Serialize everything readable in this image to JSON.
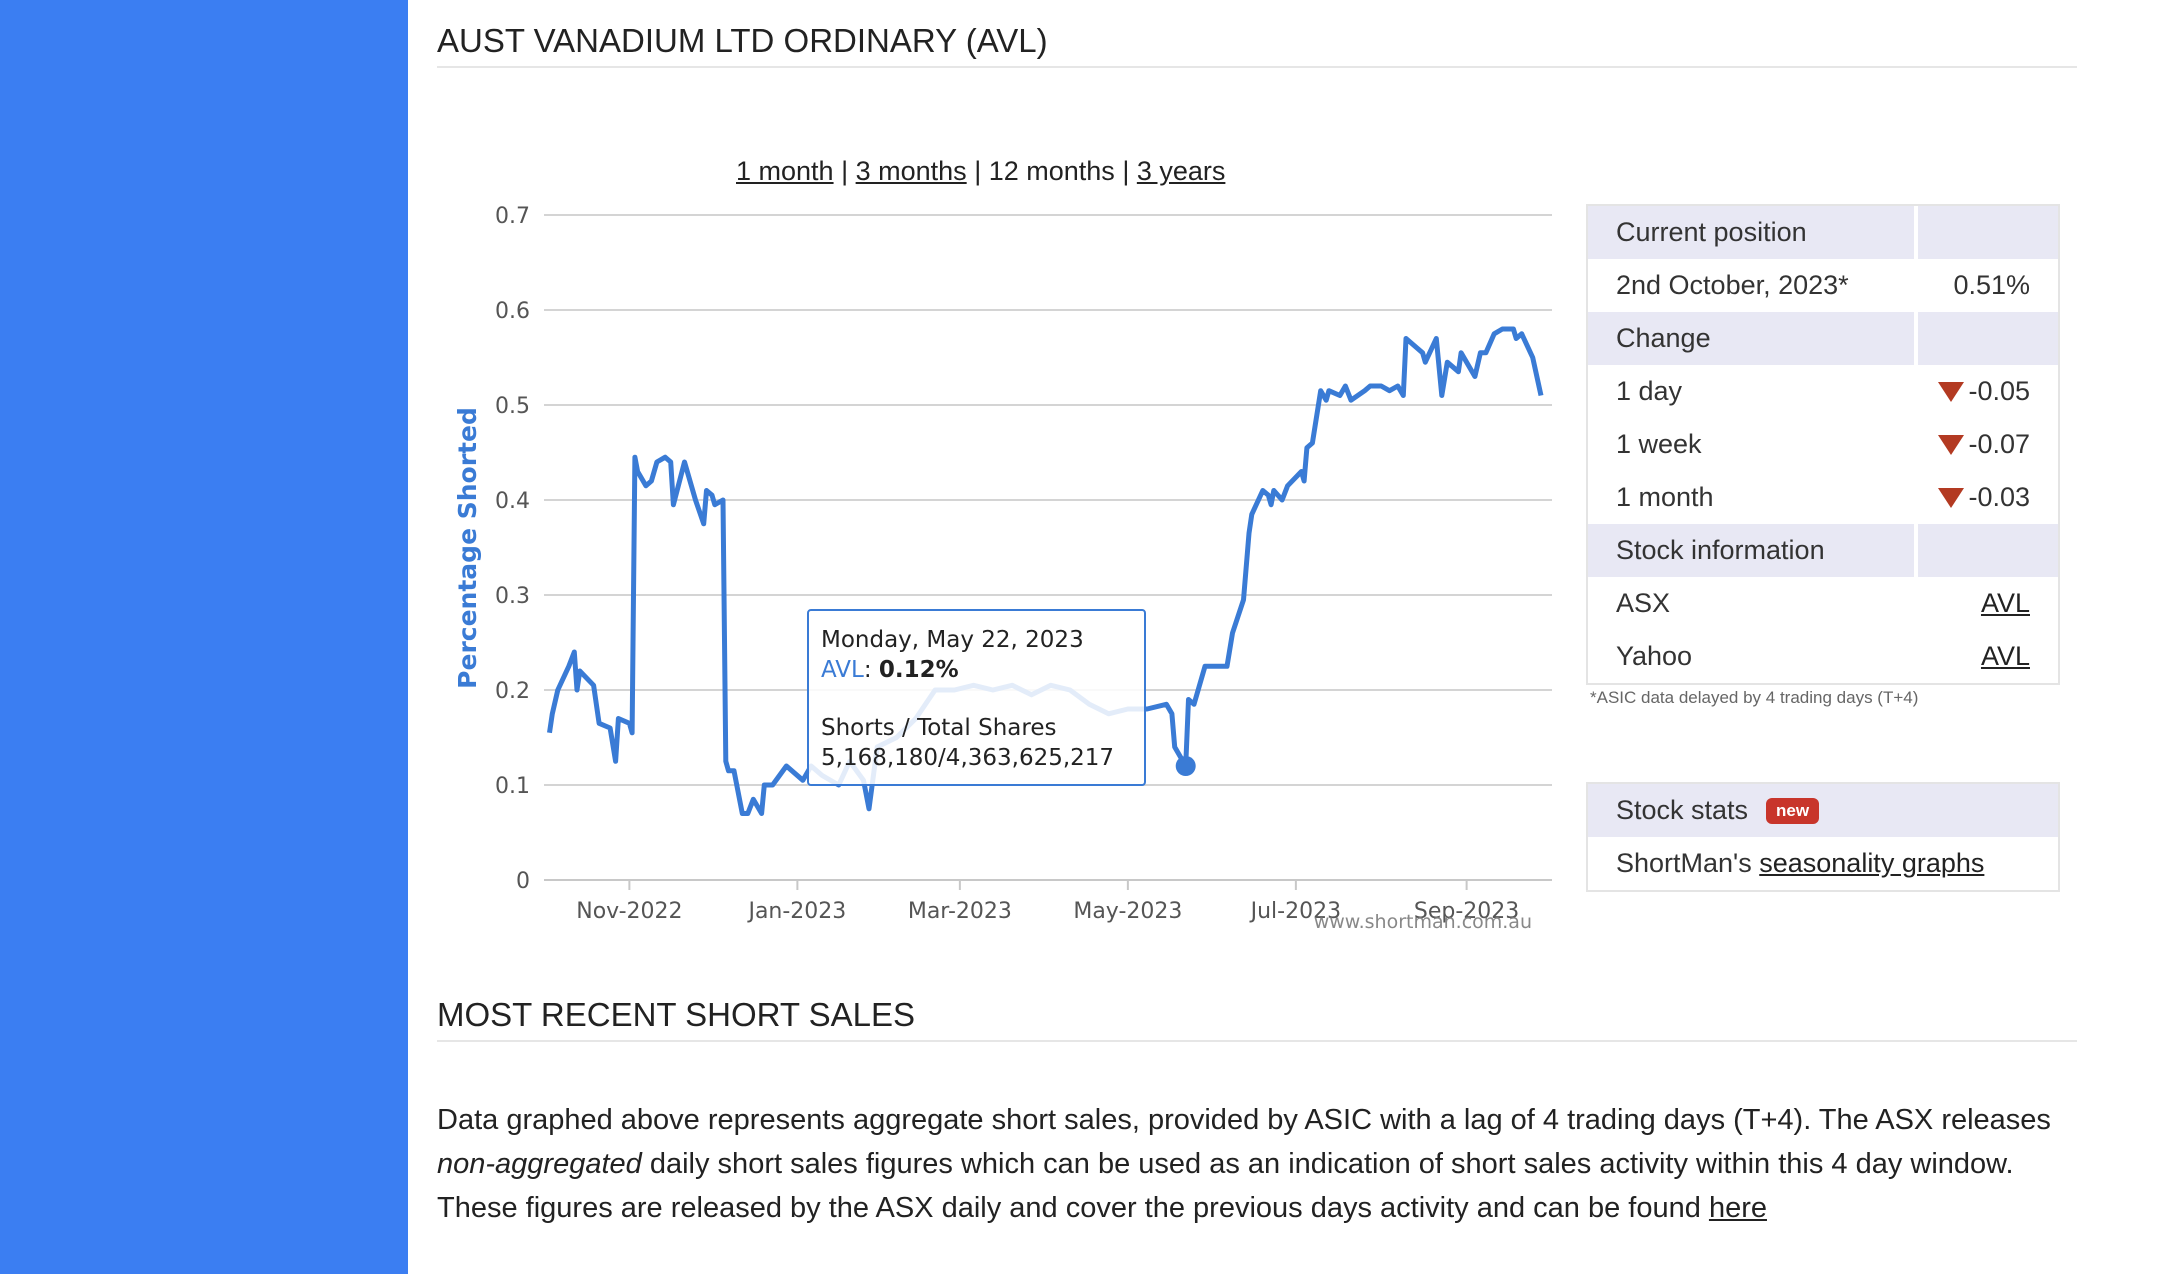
{
  "page": {
    "title": "AUST VANADIUM LTD ORDINARY (AVL)",
    "recent_heading": "MOST RECENT SHORT SALES"
  },
  "ranges": {
    "one_month": "1 month",
    "three_months": "3 months",
    "twelve_months": "12 months",
    "three_years": "3 years",
    "sep": "|"
  },
  "tooltip": {
    "date": "Monday, May 22, 2023",
    "ticker": "AVL",
    "value": "0.12%",
    "shares_label": "Shorts / Total Shares",
    "shares_value": "5,168,180/4,363,625,217"
  },
  "position_panel": {
    "current_header": "Current position",
    "date": "2nd October, 2023*",
    "date_value": "0.51%",
    "change_header": "Change",
    "day_label": "1 day",
    "day_value": "-0.05",
    "week_label": "1 week",
    "week_value": "-0.07",
    "month_label": "1 month",
    "month_value": "-0.03",
    "info_header": "Stock information",
    "asx_label": "ASX",
    "asx_link": "AVL",
    "yahoo_label": "Yahoo",
    "yahoo_link": "AVL",
    "note": "*ASIC data delayed by 4 trading days (T+4)"
  },
  "stats_panel": {
    "header": "Stock stats",
    "badge": "new",
    "prefix": "ShortMan's",
    "link": "seasonality graphs"
  },
  "description": {
    "part1": "Data graphed above represents aggregate short sales, provided by ASIC with a lag of 4 trading days (T+4). The ASX releases",
    "italic": "non-aggregated",
    "part2": "daily short sales figures which can be used as an indication of short sales activity within this 4 day window. These figures are released by the ASX daily and cover the previous days activity and can be found",
    "link": "here"
  },
  "colors": {
    "sidebar": "#3b7ef2",
    "series": "#3a7bd5",
    "down_arrow": "#b33a22",
    "badge": "#c8352b"
  },
  "chart_data": {
    "type": "line",
    "title": "",
    "xlabel": "",
    "ylabel": "Percentage Shorted",
    "credit": "www.shortman.com.au",
    "ylim": [
      0,
      0.7
    ],
    "yticks": [
      "0",
      "0.1",
      "0.2",
      "0.3",
      "0.4",
      "0.5",
      "0.6",
      "0.7"
    ],
    "xtick_labels": [
      "Nov-2022",
      "Jan-2023",
      "Mar-2023",
      "May-2023",
      "Jul-2023",
      "Sep-2023"
    ],
    "xtick_dates": [
      "2022-11-01",
      "2023-01-01",
      "2023-03-01",
      "2023-05-01",
      "2023-07-01",
      "2023-09-01"
    ],
    "x_range": [
      "2022-10-01",
      "2023-10-02"
    ],
    "grid": true,
    "series": [
      {
        "name": "AVL",
        "points": [
          [
            "2022-10-03",
            0.155
          ],
          [
            "2022-10-04",
            0.175
          ],
          [
            "2022-10-06",
            0.2
          ],
          [
            "2022-10-10",
            0.225
          ],
          [
            "2022-10-12",
            0.24
          ],
          [
            "2022-10-13",
            0.2
          ],
          [
            "2022-10-14",
            0.22
          ],
          [
            "2022-10-19",
            0.205
          ],
          [
            "2022-10-21",
            0.165
          ],
          [
            "2022-10-25",
            0.16
          ],
          [
            "2022-10-27",
            0.125
          ],
          [
            "2022-10-28",
            0.17
          ],
          [
            "2022-11-01",
            0.165
          ],
          [
            "2022-11-02",
            0.155
          ],
          [
            "2022-11-03",
            0.445
          ],
          [
            "2022-11-04",
            0.43
          ],
          [
            "2022-11-07",
            0.415
          ],
          [
            "2022-11-09",
            0.42
          ],
          [
            "2022-11-11",
            0.44
          ],
          [
            "2022-11-14",
            0.445
          ],
          [
            "2022-11-16",
            0.44
          ],
          [
            "2022-11-17",
            0.395
          ],
          [
            "2022-11-21",
            0.44
          ],
          [
            "2022-11-23",
            0.42
          ],
          [
            "2022-11-25",
            0.4
          ],
          [
            "2022-11-28",
            0.375
          ],
          [
            "2022-11-29",
            0.41
          ],
          [
            "2022-12-01",
            0.405
          ],
          [
            "2022-12-02",
            0.395
          ],
          [
            "2022-12-05",
            0.4
          ],
          [
            "2022-12-06",
            0.125
          ],
          [
            "2022-12-07",
            0.115
          ],
          [
            "2022-12-09",
            0.115
          ],
          [
            "2022-12-12",
            0.07
          ],
          [
            "2022-12-14",
            0.07
          ],
          [
            "2022-12-16",
            0.085
          ],
          [
            "2022-12-19",
            0.07
          ],
          [
            "2022-12-20",
            0.1
          ],
          [
            "2022-12-23",
            0.1
          ],
          [
            "2022-12-28",
            0.12
          ],
          [
            "2023-01-03",
            0.105
          ],
          [
            "2023-01-06",
            0.12
          ],
          [
            "2023-01-10",
            0.11
          ],
          [
            "2023-01-16",
            0.1
          ],
          [
            "2023-01-20",
            0.125
          ],
          [
            "2023-01-25",
            0.105
          ],
          [
            "2023-01-27",
            0.075
          ],
          [
            "2023-01-30",
            0.14
          ],
          [
            "2023-02-06",
            0.15
          ],
          [
            "2023-02-13",
            0.17
          ],
          [
            "2023-02-20",
            0.2
          ],
          [
            "2023-02-27",
            0.2
          ],
          [
            "2023-03-06",
            0.205
          ],
          [
            "2023-03-13",
            0.2
          ],
          [
            "2023-03-20",
            0.205
          ],
          [
            "2023-03-27",
            0.195
          ],
          [
            "2023-04-03",
            0.205
          ],
          [
            "2023-04-10",
            0.2
          ],
          [
            "2023-04-17",
            0.185
          ],
          [
            "2023-04-24",
            0.175
          ],
          [
            "2023-05-01",
            0.18
          ],
          [
            "2023-05-08",
            0.18
          ],
          [
            "2023-05-15",
            0.185
          ],
          [
            "2023-05-17",
            0.175
          ],
          [
            "2023-05-18",
            0.14
          ],
          [
            "2023-05-22",
            0.12
          ],
          [
            "2023-05-23",
            0.19
          ],
          [
            "2023-05-25",
            0.185
          ],
          [
            "2023-05-29",
            0.225
          ],
          [
            "2023-06-02",
            0.225
          ],
          [
            "2023-06-06",
            0.225
          ],
          [
            "2023-06-08",
            0.26
          ],
          [
            "2023-06-12",
            0.295
          ],
          [
            "2023-06-14",
            0.365
          ],
          [
            "2023-06-15",
            0.385
          ],
          [
            "2023-06-19",
            0.41
          ],
          [
            "2023-06-21",
            0.405
          ],
          [
            "2023-06-22",
            0.395
          ],
          [
            "2023-06-23",
            0.41
          ],
          [
            "2023-06-26",
            0.4
          ],
          [
            "2023-06-28",
            0.415
          ],
          [
            "2023-07-03",
            0.43
          ],
          [
            "2023-07-04",
            0.42
          ],
          [
            "2023-07-05",
            0.455
          ],
          [
            "2023-07-07",
            0.46
          ],
          [
            "2023-07-10",
            0.515
          ],
          [
            "2023-07-12",
            0.505
          ],
          [
            "2023-07-13",
            0.515
          ],
          [
            "2023-07-17",
            0.51
          ],
          [
            "2023-07-19",
            0.52
          ],
          [
            "2023-07-21",
            0.505
          ],
          [
            "2023-07-26",
            0.515
          ],
          [
            "2023-07-28",
            0.52
          ],
          [
            "2023-08-01",
            0.52
          ],
          [
            "2023-08-04",
            0.515
          ],
          [
            "2023-08-07",
            0.52
          ],
          [
            "2023-08-09",
            0.51
          ],
          [
            "2023-08-10",
            0.57
          ],
          [
            "2023-08-14",
            0.56
          ],
          [
            "2023-08-16",
            0.555
          ],
          [
            "2023-08-17",
            0.545
          ],
          [
            "2023-08-21",
            0.57
          ],
          [
            "2023-08-23",
            0.51
          ],
          [
            "2023-08-25",
            0.545
          ],
          [
            "2023-08-29",
            0.535
          ],
          [
            "2023-08-30",
            0.555
          ],
          [
            "2023-09-04",
            0.53
          ],
          [
            "2023-09-06",
            0.555
          ],
          [
            "2023-09-08",
            0.555
          ],
          [
            "2023-09-11",
            0.575
          ],
          [
            "2023-09-14",
            0.58
          ],
          [
            "2023-09-18",
            0.58
          ],
          [
            "2023-09-19",
            0.57
          ],
          [
            "2023-09-21",
            0.575
          ],
          [
            "2023-09-25",
            0.55
          ],
          [
            "2023-09-28",
            0.51
          ]
        ]
      }
    ],
    "highlight": {
      "date": "2023-05-22",
      "value": 0.12
    }
  }
}
